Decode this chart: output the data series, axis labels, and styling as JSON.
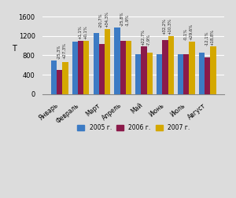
{
  "categories": [
    "Январь",
    "Февраль",
    "Март",
    "Апрель",
    "Май",
    "Июнь",
    "Июль",
    "Август"
  ],
  "values_2005": [
    700,
    1080,
    1260,
    1380,
    820,
    820,
    820,
    860
  ],
  "values_2006": [
    500,
    1100,
    1040,
    1100,
    980,
    1120,
    820,
    760
  ],
  "values_2007": [
    660,
    1100,
    1350,
    1100,
    850,
    1200,
    1080,
    980
  ],
  "color_2005": "#3c7bc4",
  "color_2006": "#8b1a4a",
  "color_2007": "#d4a800",
  "labels_2006": [
    "-25,3%",
    "+1,1%",
    "-20,7%",
    "-25,8%",
    "+22,7%",
    "+32,2%",
    "-0,1%",
    "-12,1%"
  ],
  "labels_2007": [
    "+27,3%",
    "+0,1%",
    "+34,3%",
    "-1,9%",
    "-7,9%",
    "+10,3%",
    "+29,6%",
    "+18,8%"
  ],
  "ylabel": "Т",
  "legend_2005": "2005 г.",
  "legend_2006": "2006 г.",
  "legend_2007": "2007 г.",
  "ylim": [
    0,
    1700
  ],
  "yticks": [
    0,
    400,
    800,
    1200,
    1600
  ],
  "background_color": "#dcdcdc",
  "annotation_color": "#222222"
}
